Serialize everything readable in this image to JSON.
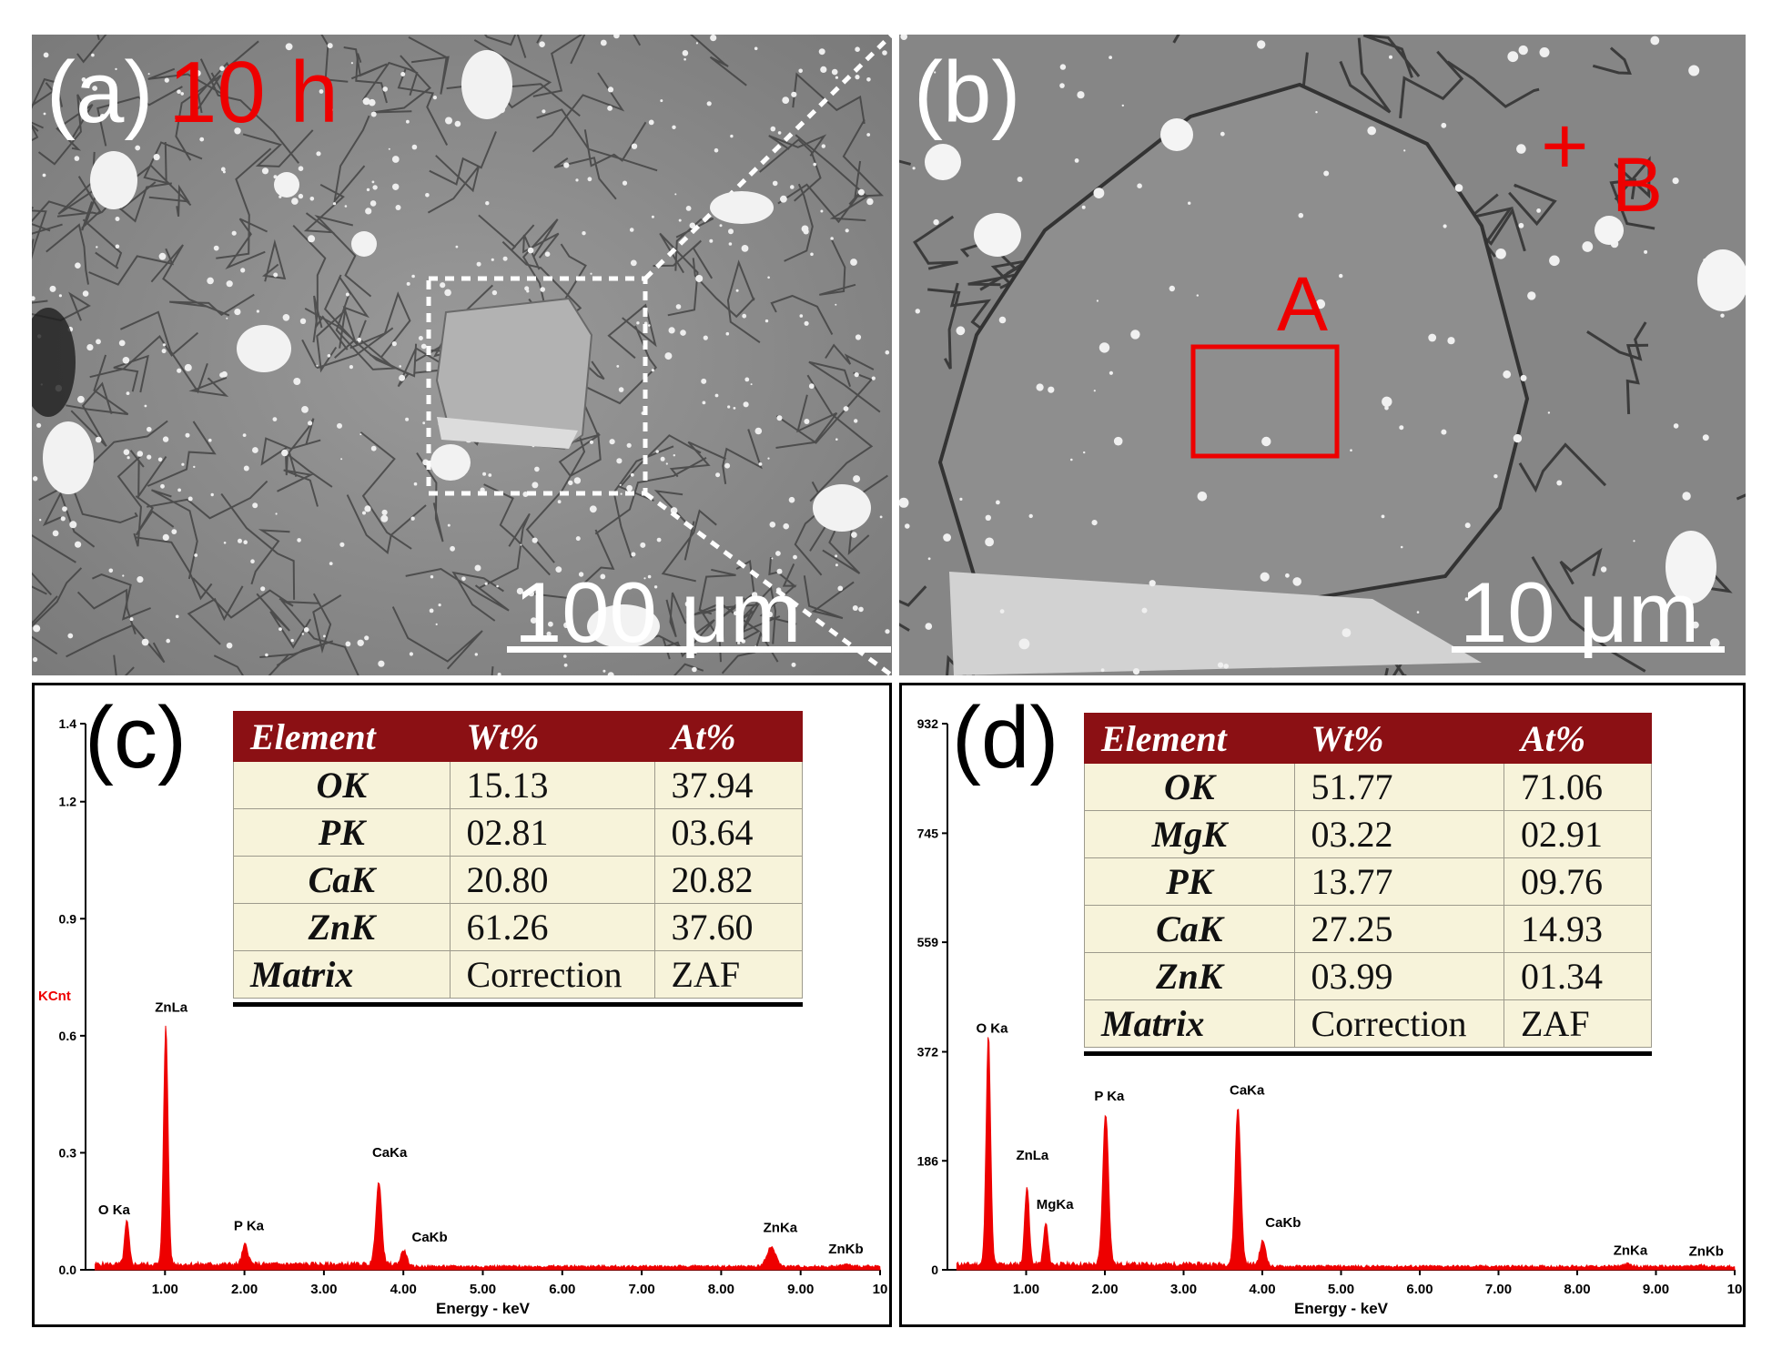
{
  "panels": {
    "a": {
      "label": "(a)",
      "time": "10 h",
      "scale": "100 μm"
    },
    "b": {
      "label": "(b)",
      "scale": "10 μm",
      "region_A": "A",
      "point_B_marker": "+",
      "point_B": "B"
    },
    "c": {
      "label": "(c)"
    },
    "d": {
      "label": "(d)"
    }
  },
  "tables": {
    "c": {
      "headers": [
        "Element",
        "Wt%",
        "At%"
      ],
      "rows": [
        [
          "OK",
          "15.13",
          "37.94"
        ],
        [
          "PK",
          "02.81",
          "03.64"
        ],
        [
          "CaK",
          "20.80",
          "20.82"
        ],
        [
          "ZnK",
          "61.26",
          "37.60"
        ],
        [
          "Matrix",
          "Correction",
          "ZAF"
        ]
      ]
    },
    "d": {
      "headers": [
        "Element",
        "Wt%",
        "At%"
      ],
      "rows": [
        [
          "OK",
          "51.77",
          "71.06"
        ],
        [
          "MgK",
          "03.22",
          "02.91"
        ],
        [
          "PK",
          "13.77",
          "09.76"
        ],
        [
          "CaK",
          "27.25",
          "14.93"
        ],
        [
          "ZnK",
          "03.99",
          "01.34"
        ],
        [
          "Matrix",
          "Correction",
          "ZAF"
        ]
      ]
    }
  },
  "chart_data": [
    {
      "type": "line",
      "xlabel": "Energy - keV",
      "ylabel": "KCnt",
      "xlim": [
        0,
        10
      ],
      "ylim": [
        0,
        1.4
      ],
      "x_ticks": [
        "1.00",
        "2.00",
        "3.00",
        "4.00",
        "5.00",
        "6.00",
        "7.00",
        "8.00",
        "9.00",
        "10"
      ],
      "y_ticks": [
        "0.0",
        "0.3",
        "0.6",
        "0.9",
        "1.2",
        "1.4"
      ],
      "y_tick_values": [
        0,
        0.3,
        0.6,
        0.9,
        1.2,
        1.4
      ],
      "peaks": [
        {
          "label": "O Ka",
          "x": 0.52,
          "y": 0.11
        },
        {
          "label": "ZnLa",
          "x": 1.01,
          "y": 0.61
        },
        {
          "label": "P Ka",
          "x": 2.01,
          "y": 0.05
        },
        {
          "label": "CaKa",
          "x": 3.69,
          "y": 0.21
        },
        {
          "label": "CaKb",
          "x": 4.01,
          "y": 0.04
        },
        {
          "label": "ZnKa",
          "x": 8.63,
          "y": 0.05
        },
        {
          "label": "ZnKb",
          "x": 9.57,
          "y": 0.005
        }
      ],
      "color": "#ee0000"
    },
    {
      "type": "line",
      "xlabel": "Energy - keV",
      "ylabel": "",
      "xlim": [
        0,
        10
      ],
      "ylim": [
        0,
        932
      ],
      "x_ticks": [
        "1.00",
        "2.00",
        "3.00",
        "4.00",
        "5.00",
        "6.00",
        "7.00",
        "8.00",
        "9.00",
        "10"
      ],
      "y_ticks": [
        "0",
        "186",
        "372",
        "559",
        "745",
        "932"
      ],
      "y_tick_values": [
        0,
        186,
        372,
        559,
        745,
        932
      ],
      "peaks": [
        {
          "label": "O Ka",
          "x": 0.52,
          "y": 392
        },
        {
          "label": "ZnLa",
          "x": 1.01,
          "y": 135
        },
        {
          "label": "MgKa",
          "x": 1.25,
          "y": 70
        },
        {
          "label": "P Ka",
          "x": 2.01,
          "y": 258
        },
        {
          "label": "CaKa",
          "x": 3.69,
          "y": 268
        },
        {
          "label": "CaKb",
          "x": 4.01,
          "y": 42
        },
        {
          "label": "ZnKa",
          "x": 8.63,
          "y": 4
        },
        {
          "label": "ZnKb",
          "x": 9.57,
          "y": 2
        }
      ],
      "color": "#ee0000"
    }
  ]
}
